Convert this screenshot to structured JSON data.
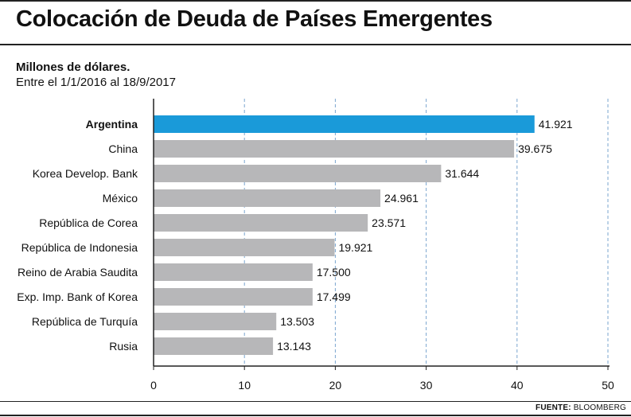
{
  "header": {
    "title": "Colocación de Deuda de Países Emergentes",
    "subtitle": "Millones de dólares.",
    "period": "Entre el 1/1/2016 al 18/9/2017"
  },
  "footer": {
    "source_label": "FUENTE:",
    "source_name": "BLOOMBERG"
  },
  "colors": {
    "highlight": "#1a9ad9",
    "bar": "#b7b7b9",
    "grid": "#7aa6cf",
    "axis": "#222222"
  },
  "chart_data": {
    "type": "bar",
    "orientation": "horizontal",
    "title": "Colocación de Deuda de Países Emergentes",
    "unit": "Millones de dólares.",
    "categories": [
      "Argentina",
      "China",
      "Korea Develop. Bank",
      "México",
      "República de Corea",
      "República de Indonesia",
      "Reino de Arabia Saudita",
      "Exp. Imp. Bank of Korea",
      "República de Turquía",
      "Rusia"
    ],
    "values": [
      41.921,
      39.675,
      31.644,
      24.961,
      23.571,
      19.921,
      17.5,
      17.499,
      13.503,
      13.143
    ],
    "value_labels": [
      "41.921",
      "39.675",
      "31.644",
      "24.961",
      "23.571",
      "19.921",
      "17.500",
      "17.499",
      "13.503",
      "13.143"
    ],
    "highlight_index": 0,
    "xlim": [
      0,
      50
    ],
    "xticks": [
      0,
      10,
      20,
      30,
      40,
      50
    ],
    "xtick_labels": [
      "0",
      "10",
      "20",
      "30",
      "40",
      "50"
    ],
    "grid": true
  }
}
